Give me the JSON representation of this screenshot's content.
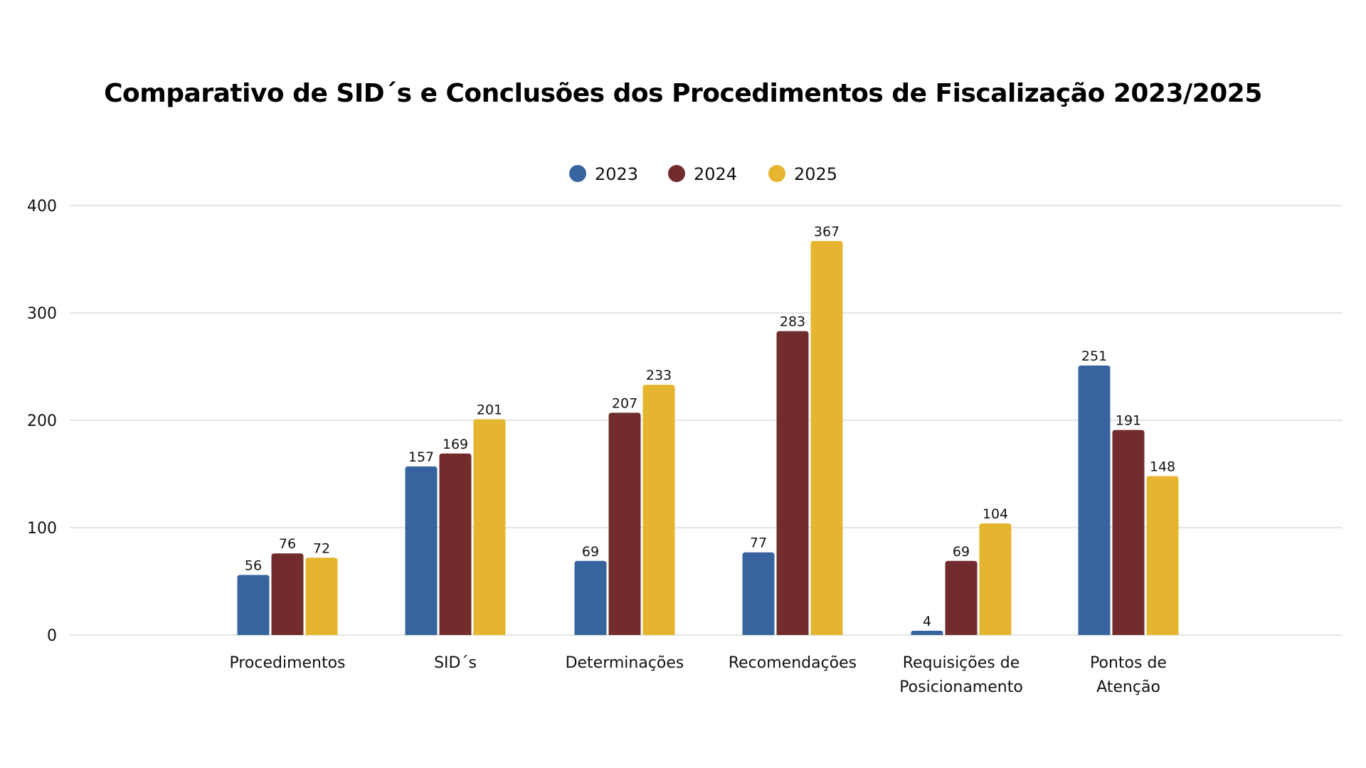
{
  "chart_data": {
    "type": "bar",
    "title": "Comparativo de SID´s e Conclusões dos Procedimentos de Fiscalização 2023/2025",
    "xlabel": "",
    "ylabel": "",
    "ylim": [
      0,
      400
    ],
    "yticks": [
      0,
      100,
      200,
      300,
      400
    ],
    "grid": true,
    "legend_position": "top-center",
    "categories": [
      [
        "Procedimentos"
      ],
      [
        "SID´s"
      ],
      [
        "Determinações"
      ],
      [
        "Recomendações"
      ],
      [
        "Requisições de",
        "Posicionamento"
      ],
      [
        "Pontos de",
        "Atenção"
      ]
    ],
    "series": [
      {
        "name": "2023",
        "color": "#37649e",
        "values": [
          56,
          157,
          69,
          77,
          4,
          251
        ]
      },
      {
        "name": "2024",
        "color": "#722c2d",
        "values": [
          76,
          169,
          207,
          283,
          69,
          191
        ]
      },
      {
        "name": "2025",
        "color": "#e6b530",
        "values": [
          72,
          201,
          233,
          367,
          104,
          148
        ]
      }
    ],
    "data_labels": true
  }
}
